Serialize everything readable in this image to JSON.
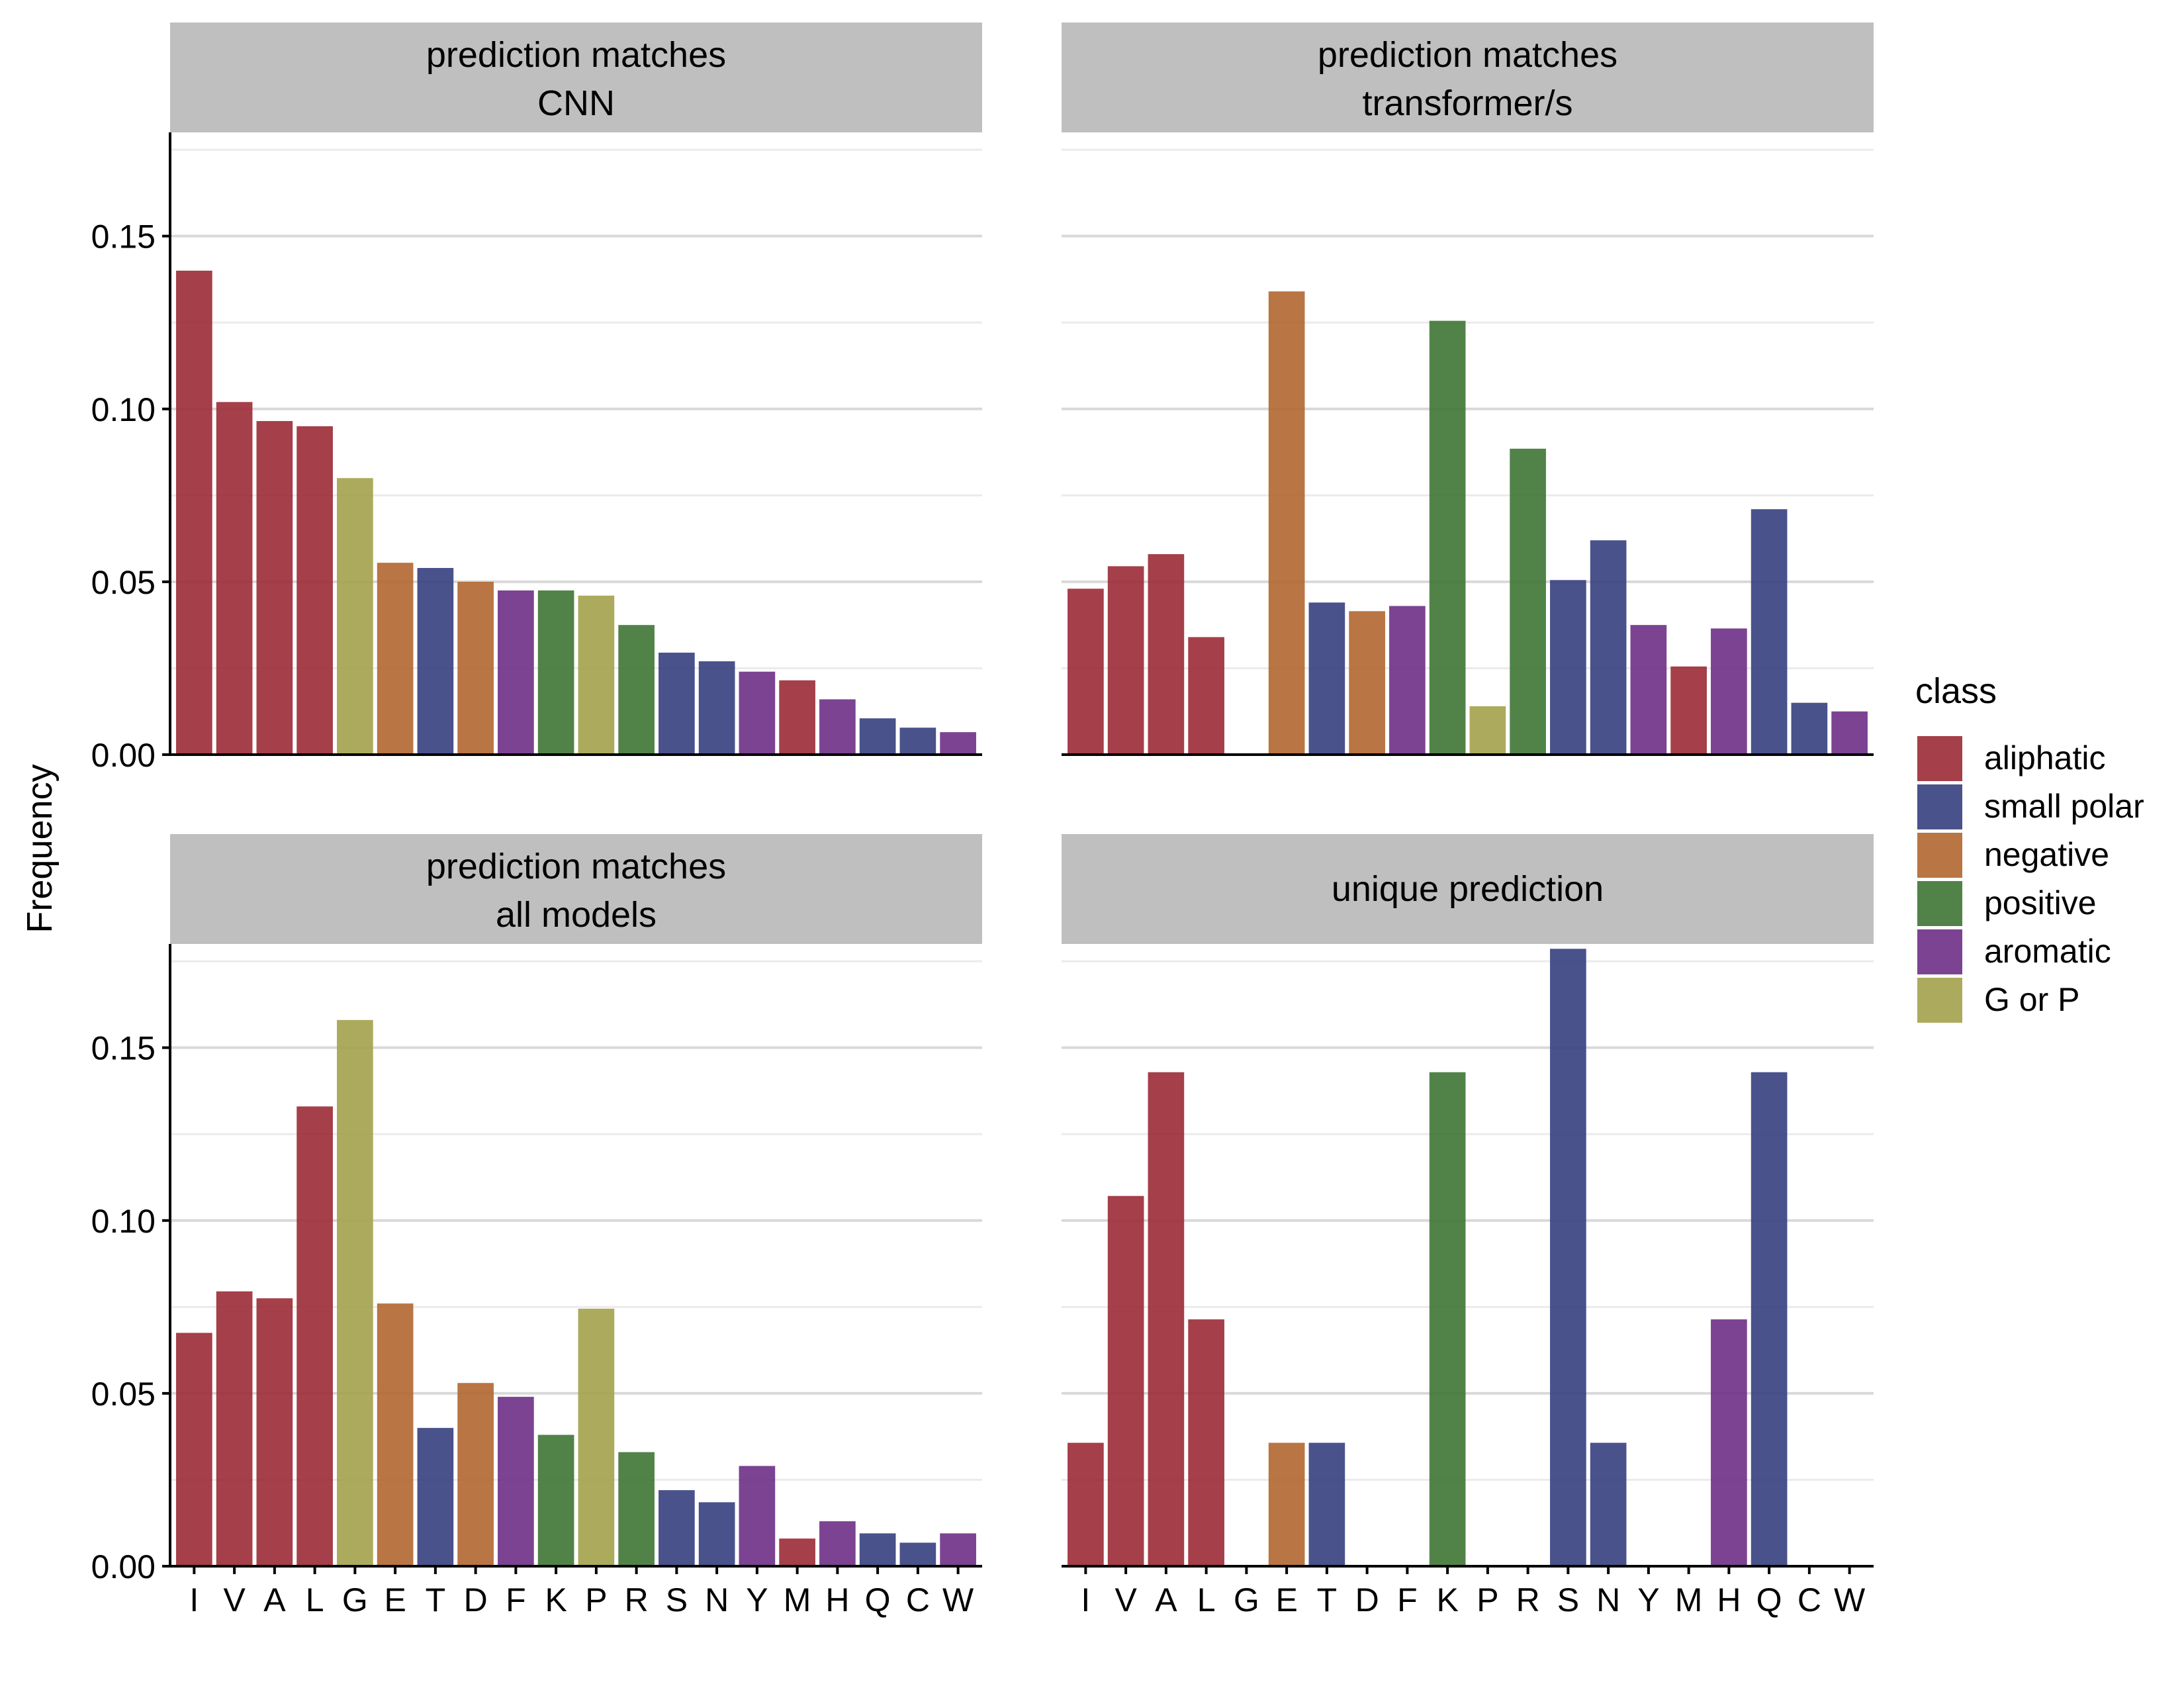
{
  "chart_data": {
    "type": "bar",
    "ylabel": "Frequency",
    "xlabel": "",
    "ylim": [
      0,
      0.18
    ],
    "yticks": [
      "0.00",
      "0.05",
      "0.10",
      "0.15"
    ],
    "ytick_values": [
      0,
      0.05,
      0.1,
      0.15
    ],
    "grid": true,
    "legend_position": "right",
    "categories": [
      "I",
      "V",
      "A",
      "L",
      "G",
      "E",
      "T",
      "D",
      "F",
      "K",
      "P",
      "R",
      "S",
      "N",
      "Y",
      "M",
      "H",
      "Q",
      "C",
      "W"
    ],
    "category_class": [
      "aliphatic",
      "aliphatic",
      "aliphatic",
      "aliphatic",
      "G or P",
      "negative",
      "small polar",
      "negative",
      "aromatic",
      "positive",
      "G or P",
      "positive",
      "small polar",
      "small polar",
      "aromatic",
      "aliphatic",
      "aromatic",
      "small polar",
      "small polar",
      "aromatic"
    ],
    "legend": {
      "title": "class",
      "items": [
        {
          "label": "aliphatic",
          "color": "#9B2A35"
        },
        {
          "label": "small polar",
          "color": "#363F80"
        },
        {
          "label": "negative",
          "color": "#B1662F"
        },
        {
          "label": "positive",
          "color": "#3E7535"
        },
        {
          "label": "aromatic",
          "color": "#6E2F86"
        },
        {
          "label": "G or P",
          "color": "#A3A24B"
        }
      ]
    },
    "panels": [
      {
        "strip_line1": "prediction matches",
        "strip_line2": "CNN",
        "values": [
          0.14,
          0.102,
          0.0965,
          0.095,
          0.08,
          0.0555,
          0.054,
          0.05,
          0.0475,
          0.0475,
          0.046,
          0.0375,
          0.0295,
          0.027,
          0.024,
          0.0215,
          0.016,
          0.0105,
          0.0078,
          0.0065
        ]
      },
      {
        "strip_line1": "prediction matches",
        "strip_line2": "transformer/s",
        "values": [
          0.048,
          0.0545,
          0.058,
          0.034,
          0,
          0.134,
          0.044,
          0.0415,
          0.043,
          0.1255,
          0.014,
          0.0885,
          0.0505,
          0.062,
          0.0375,
          0.0255,
          0.0365,
          0.071,
          0.015,
          0.0125
        ]
      },
      {
        "strip_line1": "prediction matches",
        "strip_line2": "all models",
        "values": [
          0.0675,
          0.0795,
          0.0775,
          0.133,
          0.158,
          0.076,
          0.04,
          0.053,
          0.049,
          0.038,
          0.0745,
          0.033,
          0.022,
          0.0185,
          0.029,
          0.008,
          0.013,
          0.0095,
          0.0068,
          0.0095
        ]
      },
      {
        "strip_line1": "unique prediction",
        "strip_line2": "",
        "values": [
          0.0357,
          0.1071,
          0.1429,
          0.0714,
          0,
          0.0357,
          0.0357,
          0,
          0,
          0.1429,
          0,
          0,
          0.1786,
          0.0357,
          0,
          0,
          0.0714,
          0.1429,
          0,
          0
        ]
      }
    ]
  }
}
